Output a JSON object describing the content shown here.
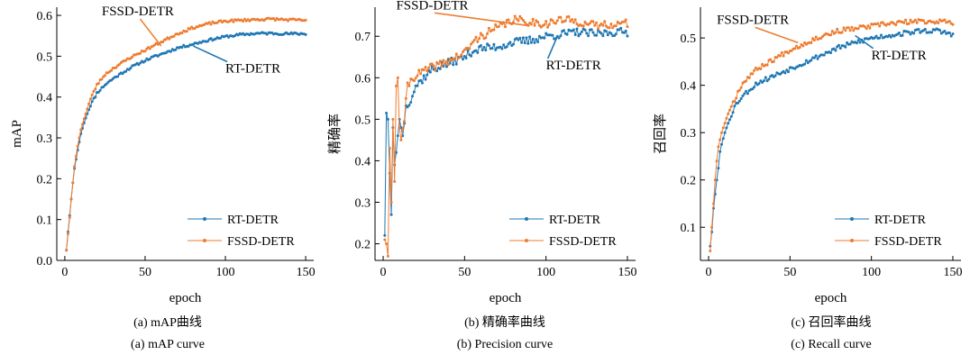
{
  "colors": {
    "rt": "#1f77b4",
    "fssd": "#ee7d31",
    "axis": "#000000"
  },
  "captions": [
    {
      "cn": "(a) mAP曲线",
      "en": "(a) mAP curve"
    },
    {
      "cn": "(b) 精确率曲线",
      "en": "(b) Precision curve"
    },
    {
      "cn": "(c) 召回率曲线",
      "en": "(c) Recall curve"
    }
  ],
  "chart_data": [
    {
      "type": "line",
      "xlabel": "epoch",
      "ylabel": "mAP",
      "xlim": [
        -5,
        155
      ],
      "ylim": [
        0,
        0.62
      ],
      "xticks": [
        0,
        50,
        100,
        150
      ],
      "xtick_labels": [
        "0",
        "50",
        "100",
        "150"
      ],
      "yticks": [
        0,
        0.1,
        0.2,
        0.3,
        0.4,
        0.5,
        0.6
      ],
      "ytick_labels": [
        "0.0",
        "0.1",
        "0.2",
        "0.3",
        "0.4",
        "0.5",
        "0.6"
      ],
      "grid": false,
      "legend_position": "bottom-right",
      "legend": [
        "RT-DETR",
        "FSSD-DETR"
      ],
      "annotations": [
        {
          "text": "FSSD-DETR",
          "series": "FSSD-DETR",
          "point": [
            60,
            0.525
          ],
          "label_at": [
            23,
            0.6
          ]
        },
        {
          "text": "RT-DETR",
          "series": "RT-DETR",
          "point": [
            80,
            0.525
          ],
          "label_at": [
            100,
            0.46
          ]
        }
      ],
      "series": [
        {
          "name": "RT-DETR",
          "knots": [
            [
              1,
              0.025
            ],
            [
              2,
              0.07
            ],
            [
              3,
              0.11
            ],
            [
              4,
              0.15
            ],
            [
              5,
              0.19
            ],
            [
              6,
              0.225
            ],
            [
              8,
              0.27
            ],
            [
              10,
              0.31
            ],
            [
              13,
              0.35
            ],
            [
              16,
              0.38
            ],
            [
              20,
              0.41
            ],
            [
              25,
              0.43
            ],
            [
              30,
              0.445
            ],
            [
              40,
              0.47
            ],
            [
              50,
              0.49
            ],
            [
              60,
              0.505
            ],
            [
              70,
              0.52
            ],
            [
              80,
              0.53
            ],
            [
              90,
              0.54
            ],
            [
              100,
              0.548
            ],
            [
              110,
              0.553
            ],
            [
              120,
              0.556
            ],
            [
              130,
              0.556
            ],
            [
              140,
              0.555
            ],
            [
              150,
              0.555
            ]
          ],
          "noise": 0.003,
          "seed": 11
        },
        {
          "name": "FSSD-DETR",
          "knots": [
            [
              1,
              0.025
            ],
            [
              2,
              0.065
            ],
            [
              3,
              0.105
            ],
            [
              4,
              0.15
            ],
            [
              5,
              0.19
            ],
            [
              6,
              0.23
            ],
            [
              8,
              0.28
            ],
            [
              10,
              0.32
            ],
            [
              13,
              0.36
            ],
            [
              16,
              0.395
            ],
            [
              20,
              0.43
            ],
            [
              25,
              0.455
            ],
            [
              30,
              0.47
            ],
            [
              40,
              0.495
            ],
            [
              50,
              0.515
            ],
            [
              60,
              0.535
            ],
            [
              70,
              0.555
            ],
            [
              80,
              0.57
            ],
            [
              90,
              0.58
            ],
            [
              100,
              0.586
            ],
            [
              110,
              0.588
            ],
            [
              120,
              0.59
            ],
            [
              130,
              0.591
            ],
            [
              140,
              0.589
            ],
            [
              150,
              0.588
            ]
          ],
          "noise": 0.003,
          "seed": 23
        }
      ]
    },
    {
      "type": "line",
      "xlabel": "epoch",
      "ylabel": "精确率",
      "xlim": [
        -5,
        155
      ],
      "ylim": [
        0.16,
        0.77
      ],
      "xticks": [
        0,
        50,
        100,
        150
      ],
      "xtick_labels": [
        "0",
        "50",
        "100",
        "150"
      ],
      "yticks": [
        0.2,
        0.3,
        0.4,
        0.5,
        0.6,
        0.7
      ],
      "ytick_labels": [
        "0.2",
        "0.3",
        "0.4",
        "0.5",
        "0.6",
        "0.7"
      ],
      "grid": false,
      "legend_position": "bottom-right",
      "legend": [
        "RT-DETR",
        "FSSD-DETR"
      ],
      "annotations": [
        {
          "text": "FSSD-DETR",
          "series": "FSSD-DETR",
          "point": [
            90,
            0.725
          ],
          "label_at": [
            8,
            0.765
          ]
        },
        {
          "text": "RT-DETR",
          "series": "RT-DETR",
          "point": [
            107,
            0.7
          ],
          "label_at": [
            100,
            0.62
          ]
        }
      ],
      "series": [
        {
          "name": "RT-DETR",
          "knots": [
            [
              1,
              0.22
            ],
            [
              2,
              0.515
            ],
            [
              3,
              0.5
            ],
            [
              4,
              0.37
            ],
            [
              5,
              0.27
            ],
            [
              6,
              0.48
            ],
            [
              7,
              0.39
            ],
            [
              8,
              0.42
            ],
            [
              10,
              0.5
            ],
            [
              12,
              0.46
            ],
            [
              14,
              0.53
            ],
            [
              17,
              0.55
            ],
            [
              20,
              0.58
            ],
            [
              25,
              0.6
            ],
            [
              30,
              0.62
            ],
            [
              40,
              0.635
            ],
            [
              50,
              0.65
            ],
            [
              55,
              0.665
            ],
            [
              60,
              0.67
            ],
            [
              70,
              0.675
            ],
            [
              80,
              0.685
            ],
            [
              90,
              0.69
            ],
            [
              100,
              0.7
            ],
            [
              110,
              0.705
            ],
            [
              120,
              0.71
            ],
            [
              130,
              0.705
            ],
            [
              140,
              0.71
            ],
            [
              150,
              0.71
            ]
          ],
          "noise": 0.01,
          "seed": 37
        },
        {
          "name": "FSSD-DETR",
          "knots": [
            [
              1,
              0.21
            ],
            [
              2,
              0.2
            ],
            [
              3,
              0.17
            ],
            [
              4,
              0.43
            ],
            [
              5,
              0.3
            ],
            [
              6,
              0.5
            ],
            [
              7,
              0.35
            ],
            [
              8,
              0.58
            ],
            [
              9,
              0.6
            ],
            [
              10,
              0.48
            ],
            [
              11,
              0.45
            ],
            [
              13,
              0.5
            ],
            [
              15,
              0.58
            ],
            [
              18,
              0.6
            ],
            [
              22,
              0.61
            ],
            [
              30,
              0.625
            ],
            [
              40,
              0.64
            ],
            [
              50,
              0.66
            ],
            [
              55,
              0.685
            ],
            [
              60,
              0.7
            ],
            [
              70,
              0.72
            ],
            [
              80,
              0.74
            ],
            [
              90,
              0.735
            ],
            [
              100,
              0.73
            ],
            [
              110,
              0.74
            ],
            [
              120,
              0.735
            ],
            [
              130,
              0.725
            ],
            [
              140,
              0.73
            ],
            [
              150,
              0.73
            ]
          ],
          "noise": 0.01,
          "seed": 41
        }
      ]
    },
    {
      "type": "line",
      "xlabel": "epoch",
      "ylabel": "召回率",
      "xlim": [
        -5,
        155
      ],
      "ylim": [
        0.03,
        0.565
      ],
      "xticks": [
        0,
        50,
        100,
        150
      ],
      "xtick_labels": [
        "0",
        "50",
        "100",
        "150"
      ],
      "yticks": [
        0.1,
        0.2,
        0.3,
        0.4,
        0.5
      ],
      "ytick_labels": [
        "0.1",
        "0.2",
        "0.3",
        "0.4",
        "0.5"
      ],
      "grid": false,
      "legend_position": "bottom-right",
      "legend": [
        "RT-DETR",
        "FSSD-DETR"
      ],
      "annotations": [
        {
          "text": "FSSD-DETR",
          "series": "FSSD-DETR",
          "point": [
            55,
            0.49
          ],
          "label_at": [
            5,
            0.53
          ]
        },
        {
          "text": "RT-DETR",
          "series": "RT-DETR",
          "point": [
            90,
            0.505
          ],
          "label_at": [
            100,
            0.455
          ]
        }
      ],
      "series": [
        {
          "name": "RT-DETR",
          "knots": [
            [
              1,
              0.06
            ],
            [
              2,
              0.09
            ],
            [
              3,
              0.14
            ],
            [
              4,
              0.17
            ],
            [
              5,
              0.2
            ],
            [
              6,
              0.225
            ],
            [
              7,
              0.26
            ],
            [
              8,
              0.275
            ],
            [
              10,
              0.3
            ],
            [
              13,
              0.33
            ],
            [
              16,
              0.355
            ],
            [
              20,
              0.375
            ],
            [
              25,
              0.39
            ],
            [
              30,
              0.405
            ],
            [
              40,
              0.42
            ],
            [
              50,
              0.435
            ],
            [
              60,
              0.45
            ],
            [
              70,
              0.465
            ],
            [
              80,
              0.48
            ],
            [
              90,
              0.49
            ],
            [
              100,
              0.5
            ],
            [
              110,
              0.505
            ],
            [
              120,
              0.51
            ],
            [
              130,
              0.515
            ],
            [
              140,
              0.515
            ],
            [
              150,
              0.508
            ]
          ],
          "noise": 0.005,
          "seed": 53
        },
        {
          "name": "FSSD-DETR",
          "knots": [
            [
              1,
              0.05
            ],
            [
              2,
              0.1
            ],
            [
              3,
              0.15
            ],
            [
              4,
              0.2
            ],
            [
              5,
              0.24
            ],
            [
              6,
              0.27
            ],
            [
              8,
              0.3
            ],
            [
              10,
              0.32
            ],
            [
              13,
              0.35
            ],
            [
              16,
              0.37
            ],
            [
              20,
              0.4
            ],
            [
              25,
              0.42
            ],
            [
              30,
              0.435
            ],
            [
              40,
              0.455
            ],
            [
              50,
              0.475
            ],
            [
              60,
              0.49
            ],
            [
              70,
              0.505
            ],
            [
              80,
              0.515
            ],
            [
              90,
              0.52
            ],
            [
              100,
              0.525
            ],
            [
              110,
              0.53
            ],
            [
              120,
              0.533
            ],
            [
              130,
              0.535
            ],
            [
              140,
              0.535
            ],
            [
              150,
              0.533
            ]
          ],
          "noise": 0.005,
          "seed": 67
        }
      ]
    }
  ]
}
